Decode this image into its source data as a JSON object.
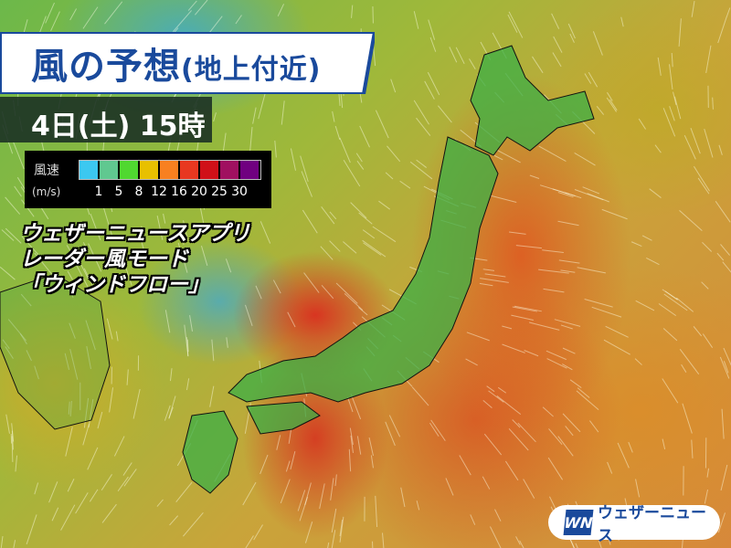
{
  "header": {
    "title": "風の予想",
    "subtitle": "(地上付近)",
    "datetime": "4日(土) 15時"
  },
  "legend": {
    "label": "風速",
    "unit": "(m/s)",
    "ticks": [
      "1",
      "5",
      "8",
      "12",
      "16",
      "20",
      "25",
      "30"
    ],
    "colors": [
      "#3cc8f0",
      "#60c890",
      "#50d830",
      "#e8c000",
      "#f88020",
      "#e83820",
      "#d01018",
      "#a01060",
      "#700080"
    ]
  },
  "caption": {
    "line1": "ウェザーニュースアプリ",
    "line2": "レーダー風モード",
    "line3": "「ウィンドフロー」"
  },
  "logo": {
    "mark": "WN",
    "text": "ウェザーニュース"
  },
  "colors": {
    "brand": "#1a4a9c",
    "land": "#3fae3a"
  }
}
